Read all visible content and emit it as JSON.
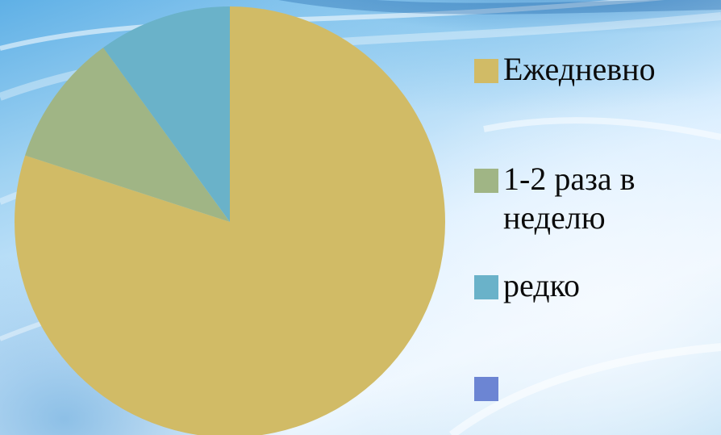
{
  "chart_data": {
    "type": "pie",
    "title": "",
    "series": [
      {
        "values": [
          80,
          10,
          10,
          0
        ]
      }
    ],
    "categories": [
      "Ежедневно",
      "1-2 раза в неделю",
      "редко",
      ""
    ],
    "colors": [
      "#d1bb66",
      "#a0b585",
      "#6ab2c9",
      "#6c85d3"
    ],
    "start_angle_deg": 0,
    "direction": "clockwise",
    "legend_position": "right"
  },
  "background": {
    "icon": "water-swirl-background"
  }
}
